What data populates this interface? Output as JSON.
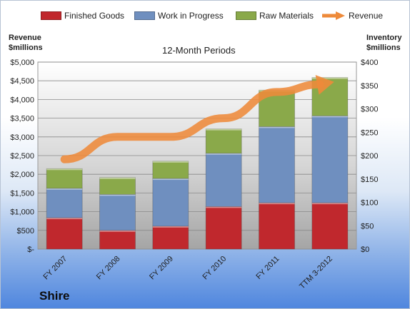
{
  "chart_data": {
    "type": "bar",
    "stacked": true,
    "title": "12-Month Periods",
    "left_axis_title": [
      "Revenue",
      "$millions"
    ],
    "right_axis_title": [
      "Inventory",
      "$millions"
    ],
    "categories": [
      "FY 2007",
      "FY 2008",
      "FY 2009",
      "FY 2010",
      "FY 2011",
      "TTM 3-2012"
    ],
    "series": [
      {
        "name": "Finished Goods",
        "axis": "right",
        "color": "#c0282d",
        "values": [
          67,
          40,
          49,
          91,
          99,
          99
        ]
      },
      {
        "name": "Work in Progress",
        "axis": "right",
        "color": "#6f8fbf",
        "values": [
          63,
          77,
          102,
          114,
          163,
          186
        ]
      },
      {
        "name": "Raw Materials",
        "axis": "right",
        "color": "#8aa94a",
        "values": [
          42,
          36,
          37,
          52,
          78,
          82
        ]
      }
    ],
    "line_series": {
      "name": "Revenue",
      "axis": "left",
      "color": "#ee8a3a",
      "values": [
        2400,
        3000,
        3000,
        3500,
        4200,
        4450
      ]
    },
    "left_axis": {
      "min": 0,
      "max": 5000,
      "step": 500,
      "tick_labels": [
        "$-",
        "$500",
        "$1,000",
        "$1,500",
        "$2,000",
        "$2,500",
        "$3,000",
        "$3,500",
        "$4,000",
        "$4,500",
        "$5,000"
      ]
    },
    "right_axis": {
      "min": 0,
      "max": 400,
      "step": 50,
      "tick_labels": [
        "$0",
        "$50",
        "$100",
        "$150",
        "$200",
        "$250",
        "$300",
        "$350",
        "$400"
      ]
    },
    "grid": true,
    "legend_position": "top"
  },
  "legend": [
    {
      "label": "Finished Goods",
      "color": "#c0282d"
    },
    {
      "label": "Work in Progress",
      "color": "#6f8fbf"
    },
    {
      "label": "Raw Materials",
      "color": "#8aa94a"
    },
    {
      "label": "Revenue",
      "color": "#ee8a3a",
      "kind": "arrow"
    }
  ],
  "company": "Shire"
}
